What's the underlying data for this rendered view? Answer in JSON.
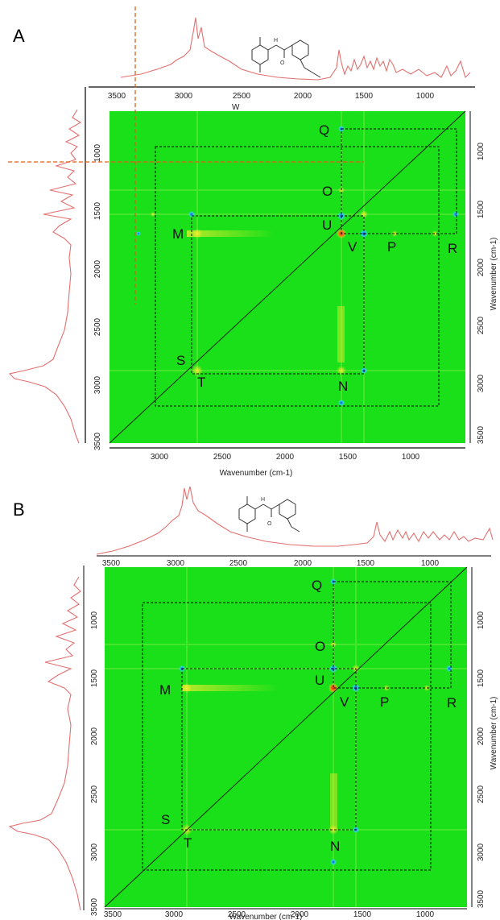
{
  "panels": [
    {
      "id": "A",
      "label": "A",
      "top_ticks": [
        "3500",
        "3000",
        "2500",
        "2000",
        "1500",
        "1000"
      ],
      "left_ticks": [
        "1000",
        "1500",
        "2000",
        "2500",
        "3000",
        "3500"
      ],
      "bottom_ticks": [
        "3000",
        "2500",
        "2000",
        "1500",
        "1000"
      ],
      "right_ticks": [
        "1000",
        "1500",
        "2000",
        "2500",
        "3000",
        "3500"
      ],
      "xlabel": "Wavenumber (cm-1)",
      "ylabel": "Wavenumber (cm-1)",
      "extra_label": "W",
      "peaks": [
        "Q",
        "O",
        "U",
        "M",
        "V",
        "P",
        "R",
        "S",
        "T",
        "N"
      ]
    },
    {
      "id": "B",
      "label": "B",
      "top_ticks": [
        "3500",
        "3000",
        "2500",
        "2000",
        "1500",
        "1000"
      ],
      "left_ticks": [
        "1000",
        "1500",
        "2000",
        "2500",
        "3000",
        "3500"
      ],
      "bottom_ticks": [
        "3500",
        "3000",
        "2500",
        "2000",
        "1500",
        "1000"
      ],
      "right_ticks": [
        "1000",
        "1500",
        "2000",
        "2500",
        "3000",
        "3500"
      ],
      "xlabel": "Wavenumber (cm-1)",
      "ylabel": "Wavenumber (cm-1)",
      "peaks": [
        "Q",
        "O",
        "U",
        "M",
        "V",
        "P",
        "R",
        "S",
        "T",
        "N"
      ]
    }
  ],
  "colors": {
    "map_background": "#19e019",
    "spectrum": "#e2706f",
    "guide_line": "#d9601a",
    "positive_peak": "#f3e62b",
    "strong_peak": "#d81b1b",
    "negative_peak": "#1f49d8",
    "weak_negative": "#2ad8e6"
  }
}
